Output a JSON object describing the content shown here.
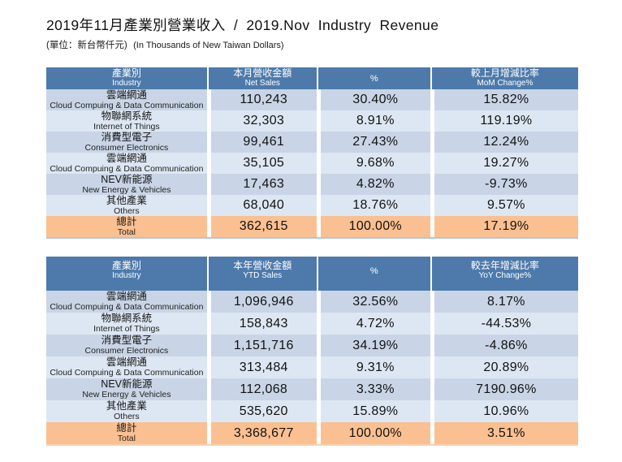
{
  "title": "2019年11月產業別營業收入 / 2019.Nov Industry Revenue",
  "subtitle": {
    "unit_zh": "(單位：新台幣仟元)",
    "unit_en": "(In Thousands of New Taiwan Dollars)"
  },
  "colors": {
    "header_blue": "#4d7aab",
    "header_text": "#ffffff",
    "row_dark": "#c9d5e6",
    "row_light": "#dde7f3",
    "total_orange": "#fac091"
  },
  "monthly_table": {
    "header": {
      "industry_zh": "產業別",
      "industry_en": "Industry",
      "amount_zh": "本月營收金額",
      "amount_en": "Net Sales",
      "percent_label": "%",
      "change_zh": "較上月增減比率",
      "change_en": "MoM Change%"
    },
    "rows": [
      {
        "industry_zh": "雲端網通",
        "industry_en": "Cloud Compuing & Data Communication",
        "amount": "110,243",
        "percent": "30.40%",
        "change": "15.82%"
      },
      {
        "industry_zh": "物聯網系統",
        "industry_en": "Internet of Things",
        "amount": "32,303",
        "percent": "8.91%",
        "change": "119.19%"
      },
      {
        "industry_zh": "消費型電子",
        "industry_en": "Consumer Electronics",
        "amount": "99,461",
        "percent": "27.43%",
        "change": "12.24%"
      },
      {
        "industry_zh": "雲端網通",
        "industry_en": "Cloud Compuing & Data Communication",
        "amount": "35,105",
        "percent": "9.68%",
        "change": "19.27%"
      },
      {
        "industry_zh": "NEV新能源",
        "industry_en": "New Energy & Vehicles",
        "amount": "17,463",
        "percent": "4.82%",
        "change": "-9.73%"
      },
      {
        "industry_zh": "其他產業",
        "industry_en": "Others",
        "amount": "68,040",
        "percent": "18.76%",
        "change": "9.57%"
      },
      {
        "industry_zh": "總計",
        "industry_en": "Total",
        "amount": "362,615",
        "percent": "100.00%",
        "change": "17.19%"
      }
    ]
  },
  "ytd_table": {
    "header": {
      "industry_zh": "產業別",
      "industry_en": "Industry",
      "amount_zh": "本年營收金額",
      "amount_en": "YTD Sales",
      "percent_label": "%",
      "change_zh": "較去年增減比率",
      "change_en": "YoY Change%"
    },
    "rows": [
      {
        "industry_zh": "雲端網通",
        "industry_en": "Cloud Compuing & Data Communication",
        "amount": "1,096,946",
        "percent": "32.56%",
        "change": "8.17%"
      },
      {
        "industry_zh": "物聯網系統",
        "industry_en": "Internet of Things",
        "amount": "158,843",
        "percent": "4.72%",
        "change": "-44.53%"
      },
      {
        "industry_zh": "消費型電子",
        "industry_en": "Consumer Electronics",
        "amount": "1,151,716",
        "percent": "34.19%",
        "change": "-4.86%"
      },
      {
        "industry_zh": "雲端網通",
        "industry_en": "Cloud Compuing & Data Communication",
        "amount": "313,484",
        "percent": "9.31%",
        "change": "20.89%"
      },
      {
        "industry_zh": "NEV新能源",
        "industry_en": "New Energy & Vehicles",
        "amount": "112,068",
        "percent": "3.33%",
        "change": "7190.96%"
      },
      {
        "industry_zh": "其他產業",
        "industry_en": "Others",
        "amount": "535,620",
        "percent": "15.89%",
        "change": "10.96%"
      },
      {
        "industry_zh": "總計",
        "industry_en": "Total",
        "amount": "3,368,677",
        "percent": "100.00%",
        "change": "3.51%"
      }
    ]
  }
}
